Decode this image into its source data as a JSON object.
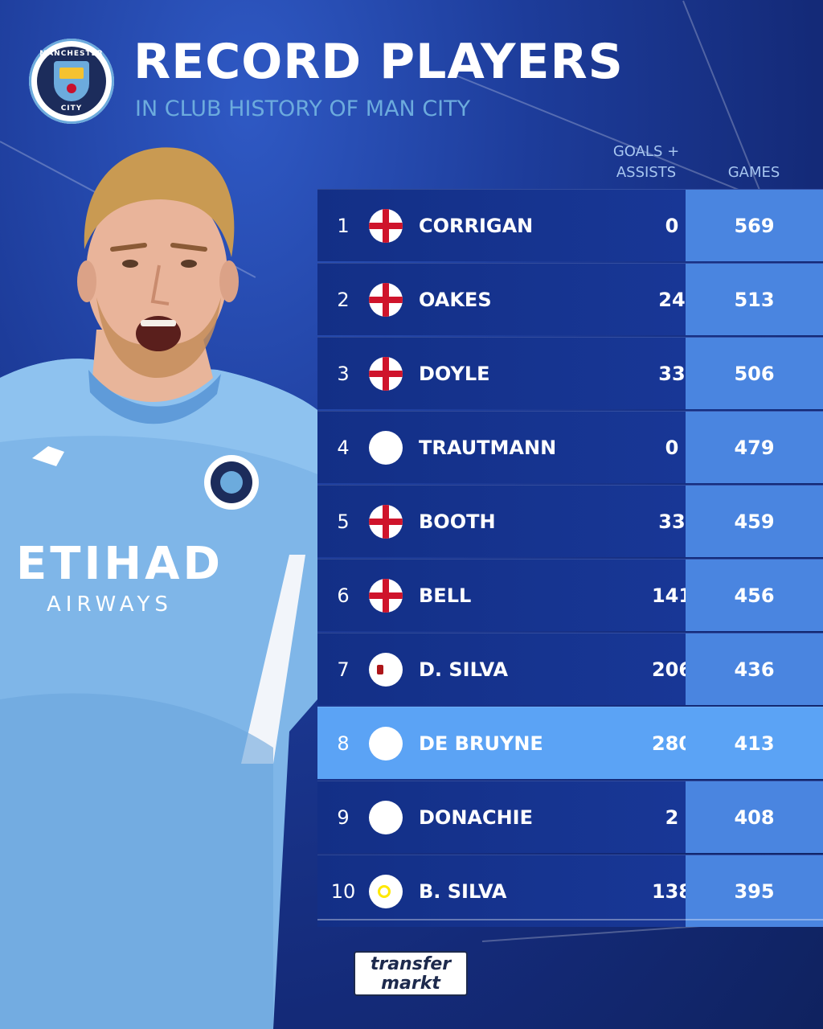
{
  "header": {
    "title": "RECORD PLAYERS",
    "subtitle": "IN CLUB HISTORY OF MAN CITY"
  },
  "club_logo": {
    "text_top": "MANCHESTER",
    "text_bottom": "CITY"
  },
  "columns": {
    "goals_assists_line1": "GOALS +",
    "goals_assists_line2": "ASSISTS",
    "games": "GAMES"
  },
  "rows": [
    {
      "rank": "1",
      "flag": "england-flag-icon",
      "name": "CORRIGAN",
      "goals_assists": "0",
      "games": "569"
    },
    {
      "rank": "2",
      "flag": "england-flag-icon",
      "name": "OAKES",
      "goals_assists": "24",
      "games": "513"
    },
    {
      "rank": "3",
      "flag": "england-flag-icon",
      "name": "DOYLE",
      "goals_assists": "33",
      "games": "506"
    },
    {
      "rank": "4",
      "flag": "germany-flag-icon",
      "name": "TRAUTMANN",
      "goals_assists": "0",
      "games": "479"
    },
    {
      "rank": "5",
      "flag": "england-flag-icon",
      "name": "BOOTH",
      "goals_assists": "33",
      "games": "459"
    },
    {
      "rank": "6",
      "flag": "england-flag-icon",
      "name": "BELL",
      "goals_assists": "141",
      "games": "456"
    },
    {
      "rank": "7",
      "flag": "spain-flag-icon",
      "name": "D. SILVA",
      "goals_assists": "206",
      "games": "436"
    },
    {
      "rank": "8",
      "flag": "belgium-flag-icon",
      "name": "DE BRUYNE",
      "goals_assists": "280",
      "games": "413"
    },
    {
      "rank": "9",
      "flag": "scotland-flag-icon",
      "name": "DONACHIE",
      "goals_assists": "2",
      "games": "408"
    },
    {
      "rank": "10",
      "flag": "portugal-flag-icon",
      "name": "B. SILVA",
      "goals_assists": "138",
      "games": "395"
    }
  ],
  "highlight_rank": "8",
  "jersey": {
    "sponsor": "ETIHAD",
    "sponsor_sub": "AIRWAYS"
  },
  "brand": {
    "line1": "transfer",
    "line2": "markt"
  },
  "colors": {
    "background": "#1d3c9a",
    "row": "#1a3a9c",
    "games_column": "#4a85e0",
    "highlight": "#5ba3f5",
    "subtitle": "#6cabdd",
    "jersey": "#7fb6e8"
  }
}
